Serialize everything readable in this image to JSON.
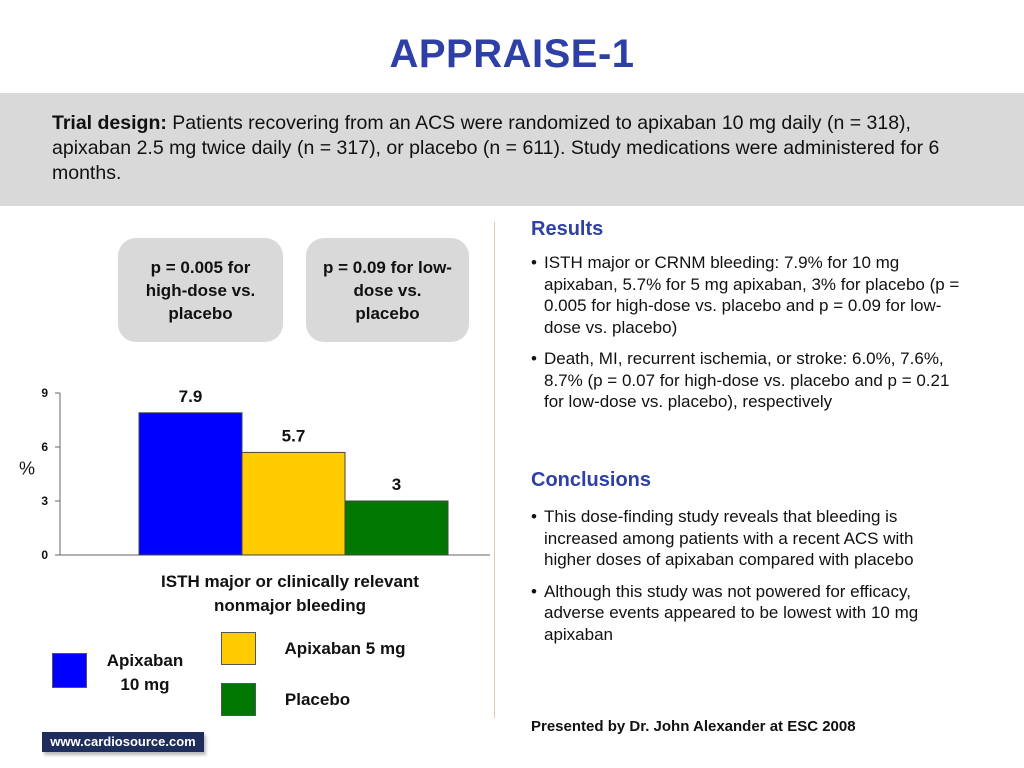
{
  "title": "APPRAISE-1",
  "design": {
    "label": "Trial design:",
    "text": " Patients recovering from an ACS were randomized to apixaban 10 mg daily (n = 318), apixaban 2.5 mg twice daily (n = 317), or placebo (n = 611). Study medications were administered for 6 months."
  },
  "pvalues": {
    "high": "p = 0.005 for high-dose vs. placebo",
    "low": "p = 0.09 for low-dose vs. placebo"
  },
  "chart_data": {
    "type": "bar",
    "categories": [
      "ISTH major or clinically relevant nonmajor bleeding"
    ],
    "series": [
      {
        "name": "Apixaban 10 mg",
        "values": [
          7.9
        ],
        "color": "#0000ff",
        "label": "7.9"
      },
      {
        "name": "Apixaban 5 mg",
        "values": [
          5.7
        ],
        "color": "#ffcc00",
        "label": "5.7"
      },
      {
        "name": "Placebo",
        "values": [
          3
        ],
        "color": "#007700",
        "label": "3"
      }
    ],
    "ylabel": "%",
    "ylim": [
      0,
      9
    ],
    "yticks": [
      "0",
      "3",
      "6",
      "9"
    ],
    "grid": false,
    "legend": "bottom"
  },
  "legend": {
    "item_10mg": "Apixaban 10 mg",
    "item_5mg": "Apixaban 5 mg",
    "item_placebo": "Placebo"
  },
  "results": {
    "heading": "Results",
    "bullets": [
      "ISTH major or CRNM bleeding: 7.9% for 10 mg apixaban, 5.7% for 5 mg apixaban, 3% for placebo (p = 0.005 for high-dose vs. placebo and p = 0.09 for low-dose vs. placebo)",
      "Death, MI, recurrent ischemia, or stroke: 6.0%, 7.6%, 8.7% (p = 0.07 for high-dose vs. placebo and p = 0.21 for low-dose vs. placebo), respectively"
    ]
  },
  "conclusions": {
    "heading": "Conclusions",
    "bullets": [
      "This dose-finding study reveals that bleeding is increased among patients with a recent ACS with higher doses of apixaban compared with placebo",
      "Although this study was not powered for efficacy, adverse events appeared to be lowest with 10 mg apixaban"
    ]
  },
  "presented_by": "Presented by Dr. John Alexander at ESC 2008",
  "site": "www.cardiosource.com",
  "colors": {
    "accent": "#2e3fa6",
    "band": "#d9d9d9"
  }
}
